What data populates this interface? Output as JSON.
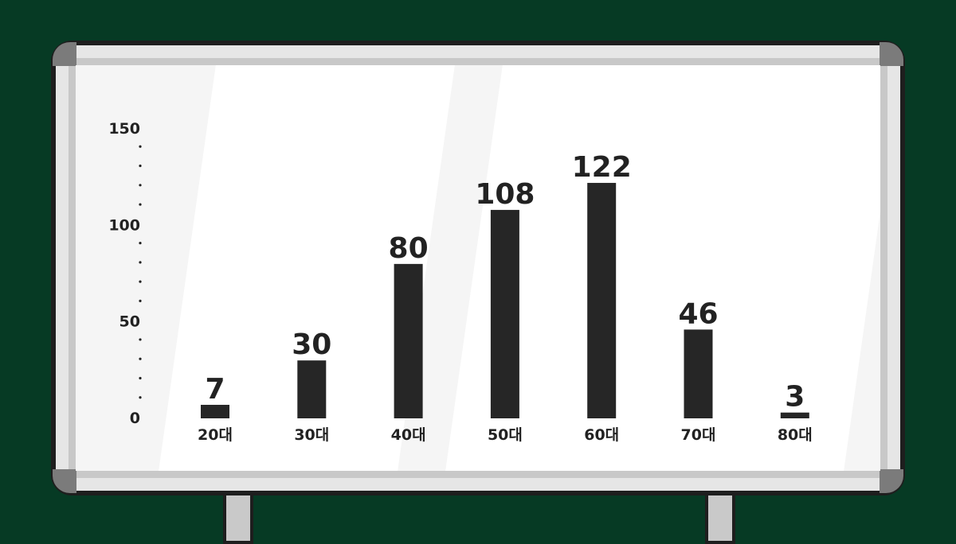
{
  "chart_data": {
    "type": "bar",
    "categories": [
      "20대",
      "30대",
      "40대",
      "50대",
      "60대",
      "70대",
      "80대"
    ],
    "values": [
      7,
      30,
      80,
      108,
      122,
      46,
      3
    ],
    "ylim": [
      0,
      150
    ],
    "yticks": [
      "0",
      "50",
      "100",
      "150"
    ],
    "grid": false,
    "bar_color": "#262626",
    "background_color": "#063a24"
  }
}
